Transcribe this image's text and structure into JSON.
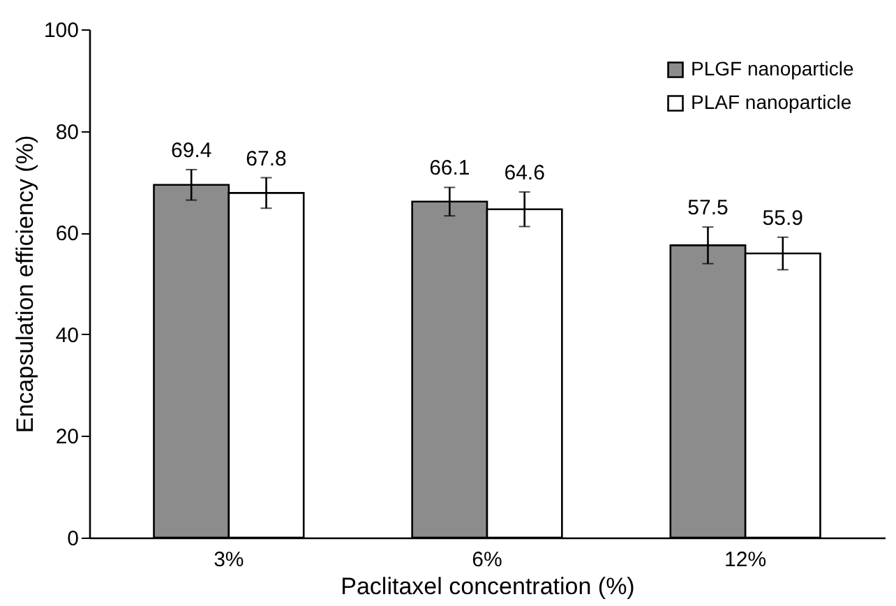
{
  "chart_data": {
    "type": "bar",
    "xlabel": "Paclitaxel concentration (%)",
    "ylabel": "Encapsulation efficiency (%)",
    "categories": [
      "3%",
      "6%",
      "12%"
    ],
    "series": [
      {
        "name": "PLGF nanoparticle",
        "color": "#8c8c8c",
        "values": [
          69.4,
          66.1,
          57.5
        ],
        "errors": [
          3.0,
          2.8,
          3.6
        ]
      },
      {
        "name": "PLAF nanoparticle",
        "color": "#ffffff",
        "values": [
          67.8,
          64.6,
          55.9
        ],
        "errors": [
          3.0,
          3.4,
          3.2
        ]
      }
    ],
    "ylim": [
      0,
      100
    ],
    "yticks": [
      0,
      20,
      40,
      60,
      80,
      100
    ],
    "grid": false,
    "legend": "top right",
    "data_labels": true
  }
}
